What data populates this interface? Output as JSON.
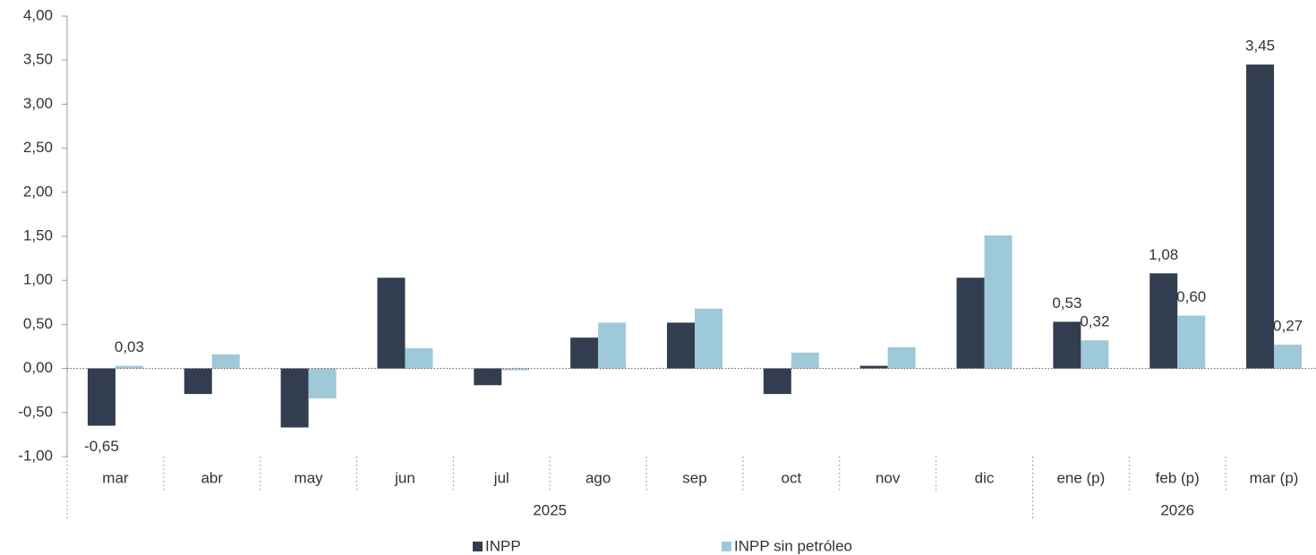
{
  "chart_data": {
    "type": "bar",
    "categories": [
      "mar",
      "abr",
      "may",
      "jun",
      "jul",
      "ago",
      "sep",
      "oct",
      "nov",
      "dic",
      "ene (p)",
      "feb (p)",
      "mar (p)"
    ],
    "x_groups": [
      {
        "label": "2025",
        "span": 10
      },
      {
        "label": "2026",
        "span": 3
      }
    ],
    "series": [
      {
        "name": "INPP",
        "color": "#323e4f",
        "values": [
          -0.65,
          -0.29,
          -0.67,
          1.03,
          -0.19,
          0.35,
          0.52,
          -0.29,
          0.03,
          1.03,
          0.53,
          1.08,
          3.45
        ],
        "value_labels": [
          "-0,65",
          null,
          null,
          null,
          null,
          null,
          null,
          null,
          null,
          null,
          "0,53",
          "1,08",
          "3,45"
        ]
      },
      {
        "name": "INPP sin petróleo",
        "color": "#9ec9d9",
        "values": [
          0.03,
          0.16,
          -0.34,
          0.23,
          -0.02,
          0.52,
          0.68,
          0.18,
          0.24,
          1.51,
          0.32,
          0.6,
          0.27
        ],
        "value_labels": [
          "0,03",
          null,
          null,
          null,
          null,
          null,
          null,
          null,
          null,
          null,
          "0,32",
          "0,60",
          "0,27"
        ]
      }
    ],
    "ylim": [
      -1,
      4
    ],
    "yticks": [
      {
        "value": -1,
        "label": "-1,00"
      },
      {
        "value": -0.5,
        "label": "-0,50"
      },
      {
        "value": 0,
        "label": "0,00"
      },
      {
        "value": 0.5,
        "label": "0,50"
      },
      {
        "value": 1,
        "label": "1,00"
      },
      {
        "value": 1.5,
        "label": "1,50"
      },
      {
        "value": 2,
        "label": "2,00"
      },
      {
        "value": 2.5,
        "label": "2,50"
      },
      {
        "value": 3,
        "label": "3,00"
      },
      {
        "value": 3.5,
        "label": "3,50"
      },
      {
        "value": 4,
        "label": "4,00"
      }
    ],
    "legend": "bottom"
  }
}
